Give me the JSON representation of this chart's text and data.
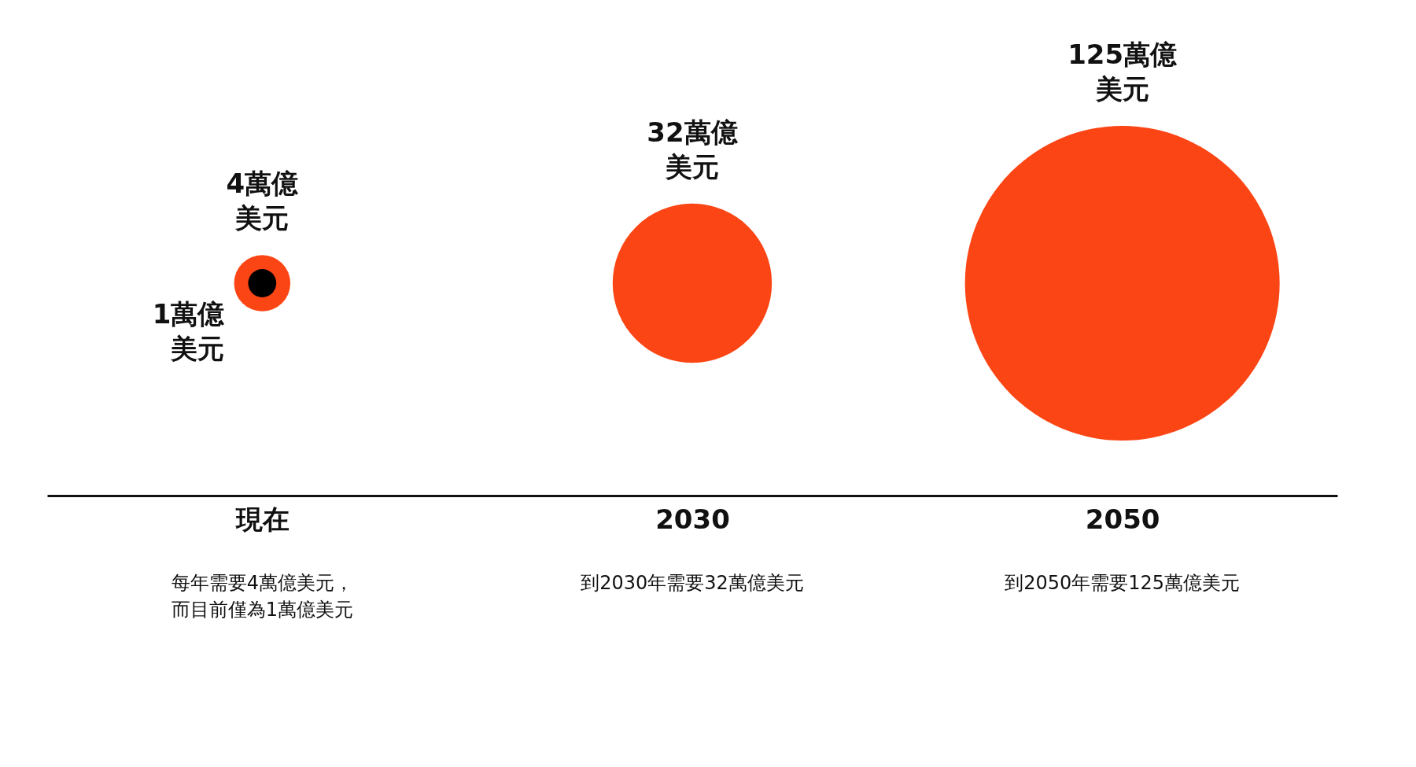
{
  "chart_data": {
    "type": "other",
    "categories": [
      "現在",
      "2030",
      "2050"
    ],
    "series": [
      {
        "color": "#fc4515",
        "values": [
          4,
          32,
          125
        ],
        "value_labels": [
          "4萬億美元",
          "32萬億美元",
          "125萬億美元"
        ]
      },
      {
        "color": "#000000",
        "values": [
          1,
          null,
          null
        ],
        "value_labels": [
          "1萬億美元",
          null,
          null
        ]
      }
    ],
    "annotations": [
      "每年需要4萬億美元，而目前僅為1萬億美元",
      "到2030年需要32萬億美元",
      "到2050年需要125萬億美元"
    ],
    "legend": false
  }
}
